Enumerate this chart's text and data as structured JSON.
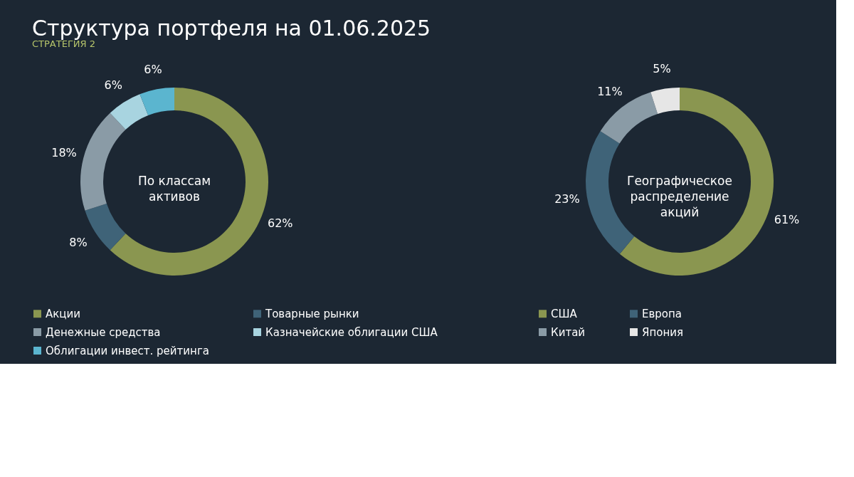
{
  "chart_data": [
    {
      "type": "donut",
      "title": "Структура портфеля на 01.06.2025",
      "subtitle": "СТРАТЕГИЯ 2",
      "annotations": [
        "По классам активов"
      ],
      "categories": [
        "Акции",
        "Товарные рынки",
        "Денежные средства",
        "Казначейские облигации США",
        "Облигации инвест. рейтинга"
      ],
      "values": [
        62,
        8,
        18,
        6,
        6
      ],
      "colors": [
        "#8a9650",
        "#3f6378",
        "#8a9ba6",
        "#a8d4e0",
        "#5bb5cf"
      ],
      "value_labels": [
        "62%",
        "8%",
        "18%",
        "6%",
        "6%"
      ],
      "legend": "bottom"
    },
    {
      "type": "donut",
      "annotations": [
        "Географическое распределение акций"
      ],
      "categories": [
        "США",
        "Европа",
        "Китай",
        "Япония"
      ],
      "values": [
        61,
        23,
        11,
        5
      ],
      "colors": [
        "#8a9650",
        "#3f6378",
        "#8a9ba6",
        "#e6e6e6"
      ],
      "value_labels": [
        "61%",
        "23%",
        "11%",
        "5%"
      ],
      "legend": "bottom"
    }
  ]
}
